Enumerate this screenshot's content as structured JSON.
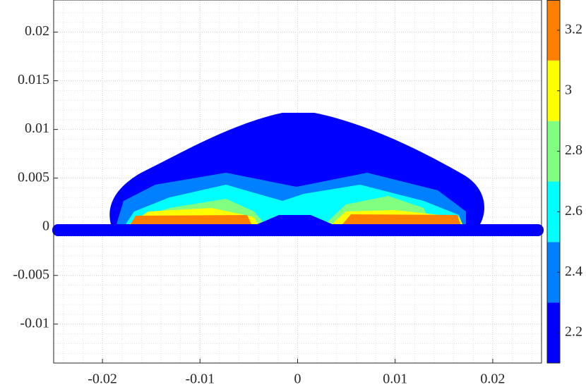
{
  "chart_data": {
    "type": "contour",
    "xlim": [
      -0.025,
      0.025
    ],
    "xticks": [
      -0.02,
      -0.01,
      0,
      0.01,
      0.02
    ],
    "ylim": [
      -0.014,
      0.0233
    ],
    "yticks": [
      -0.01,
      -0.005,
      0,
      0.005,
      0.01,
      0.015,
      0.02
    ],
    "grid": true,
    "colorbar": {
      "lim": [
        2.1,
        3.3
      ],
      "ticks": [
        2.2,
        2.4,
        2.6,
        2.8,
        3,
        3.2
      ],
      "levels": [
        2.1,
        2.3,
        2.5,
        2.7,
        2.9,
        3.1,
        3.3
      ],
      "colors": [
        "#0000ff",
        "#0080ff",
        "#00ffff",
        "#80ff80",
        "#ffff00",
        "#ff8000"
      ]
    }
  }
}
